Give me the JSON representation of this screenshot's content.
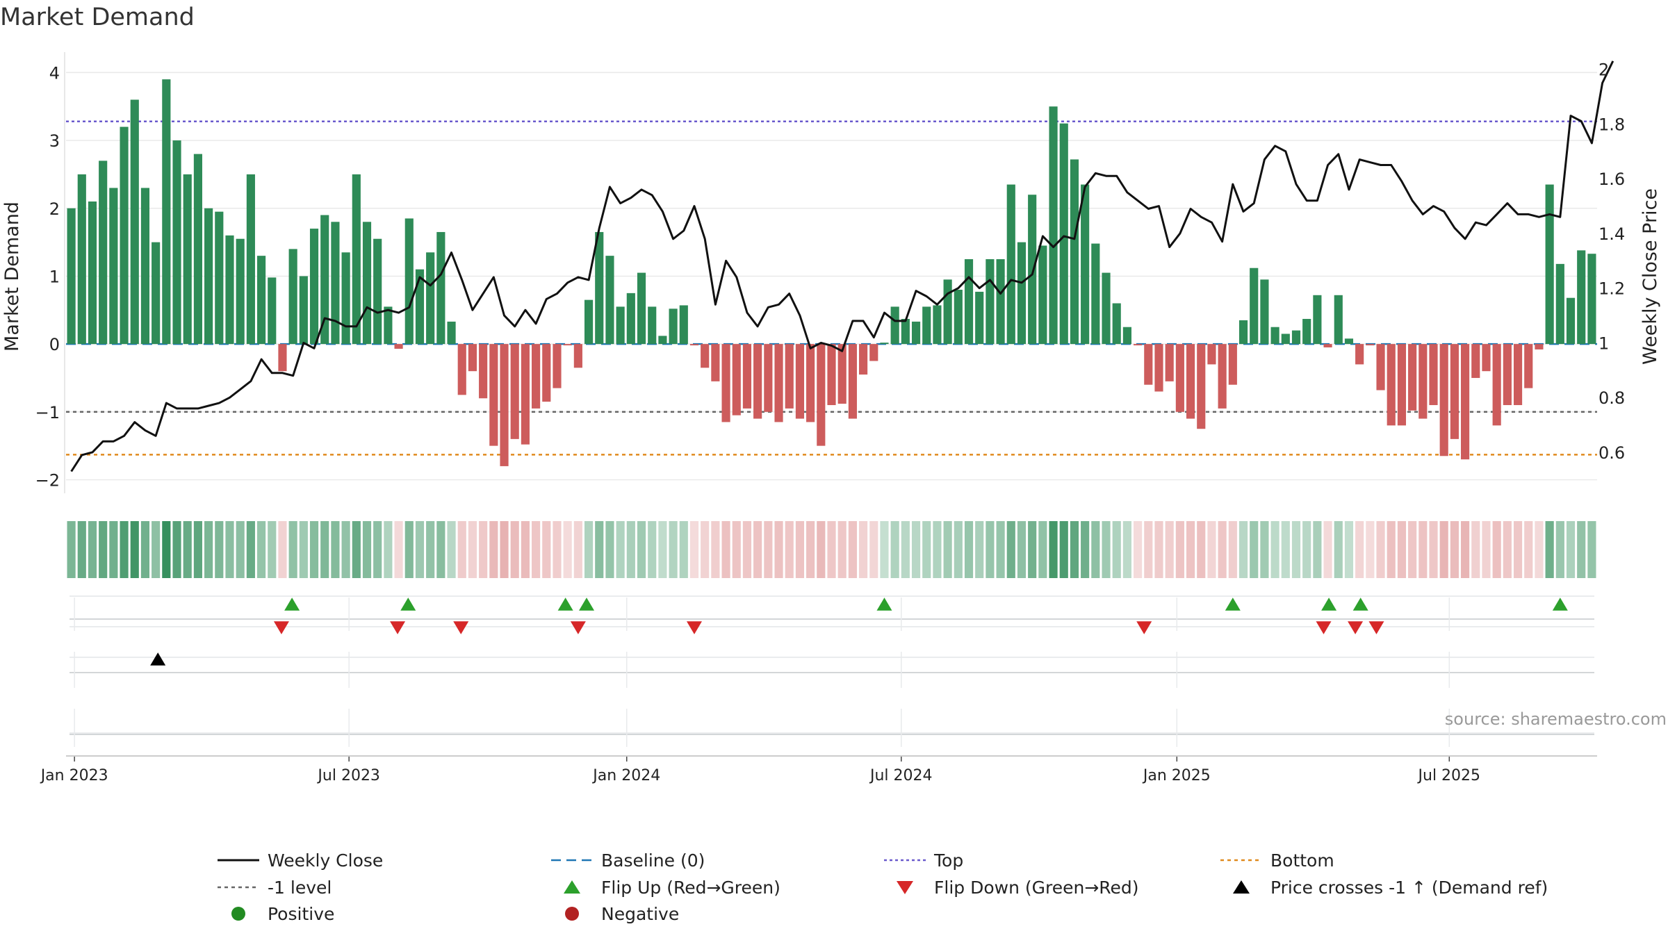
{
  "chart_data": {
    "type": "bar+line",
    "title": "Market Demand",
    "ylabel_left": "Market Demand",
    "ylabel_right": "Weekly Close Price",
    "ylim_left": [
      -2.2,
      4.25
    ],
    "ylim_right": [
      0.45,
      2.05
    ],
    "yticks_left": [
      -2,
      -1,
      0,
      1,
      2,
      3,
      4
    ],
    "yticks_right": [
      0.6,
      0.8,
      1,
      1.2,
      1.4,
      1.6,
      1.8,
      2
    ],
    "ytick_labels_left": [
      "−2",
      "−1",
      "0",
      "1",
      "2",
      "3",
      "4"
    ],
    "ytick_labels_right": [
      "0.6",
      "0.8",
      "1",
      "1.2",
      "1.4",
      "1.6",
      "1.8",
      "2"
    ],
    "x_tick_labels": [
      "Jan 2023",
      "Jul 2023",
      "Jan 2024",
      "Jul 2024",
      "Jan 2025",
      "Jul 2025"
    ],
    "x_tick_weeks": [
      0.3,
      26.3,
      52.6,
      78.6,
      104.7,
      130.5
    ],
    "reference_lines": {
      "top": 3.28,
      "minus_one": -1.0,
      "bottom": -1.63,
      "baseline": 0
    },
    "demand": [
      2.0,
      2.5,
      2.1,
      2.7,
      2.3,
      3.2,
      3.6,
      2.3,
      1.5,
      3.9,
      3.0,
      2.5,
      2.8,
      2.0,
      1.95,
      1.6,
      1.55,
      2.5,
      1.3,
      0.98,
      -0.4,
      1.4,
      1.0,
      1.7,
      1.9,
      1.8,
      1.35,
      2.5,
      1.8,
      1.55,
      0.55,
      -0.07,
      1.85,
      1.1,
      1.35,
      1.65,
      0.33,
      -0.75,
      -0.4,
      -0.8,
      -1.5,
      -1.8,
      -1.4,
      -1.48,
      -0.95,
      -0.85,
      -0.65,
      -0.02,
      -0.35,
      0.65,
      1.65,
      1.3,
      0.55,
      0.75,
      1.05,
      0.55,
      0.12,
      0.52,
      0.57,
      -0.02,
      -0.35,
      -0.55,
      -1.15,
      -1.05,
      -0.95,
      -1.1,
      -1.0,
      -1.15,
      -0.95,
      -1.1,
      -1.15,
      -1.5,
      -0.9,
      -0.88,
      -1.1,
      -0.45,
      -0.25,
      0.02,
      0.55,
      0.37,
      0.33,
      0.55,
      0.57,
      0.95,
      0.8,
      1.25,
      0.77,
      1.25,
      1.25,
      2.35,
      1.5,
      2.2,
      1.45,
      3.5,
      3.25,
      2.72,
      2.35,
      1.48,
      1.05,
      0.6,
      0.25,
      -0.02,
      -0.6,
      -0.7,
      -0.55,
      -1.0,
      -1.1,
      -1.25,
      -0.3,
      -0.95,
      -0.6,
      0.35,
      1.12,
      0.95,
      0.25,
      0.15,
      0.2,
      0.37,
      0.72,
      -0.05,
      0.72,
      0.08,
      -0.3,
      -0.02,
      -0.68,
      -1.2,
      -1.2,
      -0.98,
      -1.1,
      -0.9,
      -1.65,
      -1.4,
      -1.7,
      -0.5,
      -0.4,
      -1.2,
      -0.9,
      -0.9,
      -0.65,
      -0.08,
      2.35,
      1.18,
      0.68,
      1.38,
      1.33
    ],
    "weekly_close": [
      0.53,
      0.59,
      0.6,
      0.64,
      0.64,
      0.66,
      0.71,
      0.68,
      0.66,
      0.78,
      0.76,
      0.76,
      0.76,
      0.77,
      0.78,
      0.8,
      0.83,
      0.86,
      0.94,
      0.89,
      0.89,
      0.88,
      1.0,
      0.98,
      1.09,
      1.08,
      1.06,
      1.06,
      1.13,
      1.11,
      1.12,
      1.11,
      1.13,
      1.24,
      1.21,
      1.25,
      1.33,
      1.23,
      1.12,
      1.18,
      1.24,
      1.1,
      1.06,
      1.12,
      1.07,
      1.16,
      1.18,
      1.22,
      1.24,
      1.23,
      1.42,
      1.57,
      1.51,
      1.53,
      1.56,
      1.54,
      1.48,
      1.38,
      1.41,
      1.5,
      1.38,
      1.14,
      1.3,
      1.24,
      1.11,
      1.06,
      1.13,
      1.14,
      1.18,
      1.1,
      0.98,
      1.0,
      0.99,
      0.97,
      1.08,
      1.08,
      1.02,
      1.11,
      1.08,
      1.08,
      1.19,
      1.17,
      1.14,
      1.18,
      1.2,
      1.24,
      1.2,
      1.23,
      1.18,
      1.23,
      1.22,
      1.25,
      1.39,
      1.35,
      1.39,
      1.38,
      1.57,
      1.62,
      1.61,
      1.61,
      1.55,
      1.52,
      1.49,
      1.5,
      1.35,
      1.4,
      1.49,
      1.46,
      1.44,
      1.37,
      1.58,
      1.48,
      1.51,
      1.67,
      1.72,
      1.7,
      1.58,
      1.52,
      1.52,
      1.65,
      1.69,
      1.56,
      1.67,
      1.66,
      1.65,
      1.65,
      1.59,
      1.52,
      1.47,
      1.5,
      1.48,
      1.42,
      1.38,
      1.44,
      1.43,
      1.47,
      1.51,
      1.47,
      1.47,
      1.46,
      1.47,
      1.46,
      1.83,
      1.81,
      1.73,
      1.95,
      2.03
    ],
    "flips_up_weeks": [
      20.9,
      31.9,
      46.8,
      48.8,
      77.0,
      110.0,
      119.1,
      122.1,
      141.0
    ],
    "flips_down_weeks": [
      19.9,
      30.9,
      36.9,
      48.0,
      59.0,
      101.6,
      118.6,
      121.6,
      123.6
    ],
    "price_crosses_weeks": [
      8.2
    ],
    "series": [
      {
        "name": "Weekly Close"
      },
      {
        "name": "Baseline (0)"
      },
      {
        "name": "Top"
      },
      {
        "name": "Bottom"
      },
      {
        "name": "-1 level"
      },
      {
        "name": "Flip Up (Red→Green)"
      },
      {
        "name": "Flip Down (Green→Red)"
      },
      {
        "name": "Price crosses -1 ↑ (Demand ref)"
      },
      {
        "name": "Positive"
      },
      {
        "name": "Negative"
      }
    ],
    "legend_placement": "bottom",
    "annotation": "source: sharemaestro.com",
    "colors": {
      "positive_bar": "#2e8b57",
      "negative_bar": "#cd5c5c",
      "close_line": "#111111",
      "baseline": "#1f77b4",
      "top": "#6a5acd",
      "minus_one": "#666666",
      "bottom": "#e08a1e",
      "flip_up": "#2ca02c",
      "flip_down": "#d62728",
      "positive_dot": "#228b22",
      "negative_dot": "#b22222",
      "grid": "#e9e9e9",
      "axis_text": "#222222"
    }
  }
}
